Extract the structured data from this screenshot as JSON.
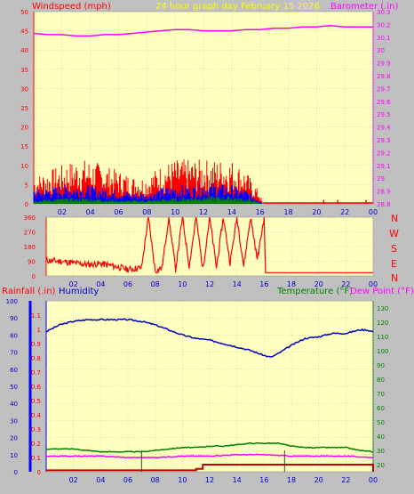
{
  "header": {
    "left_title": "Windspeed (mph)",
    "center_title": "24 hour graph day   February 15 2026",
    "right_title": "Barometer (.in)"
  },
  "wind_dir_labels": [
    "N",
    "W",
    "S",
    "E",
    "N"
  ],
  "bottom_header": {
    "rainfall": "Rainfall (.in)",
    "humidity": "Humidity",
    "temperature": "Temperature (°F)",
    "dew_point": "Dew Point (°F)"
  },
  "colors": {
    "background": "#c0c0c0",
    "plot": "#ffffc0",
    "wind_gust": "#ff0000",
    "wind_avg": "#0000ff",
    "wind_low": "#008000",
    "barometer": "#ff00ff",
    "direction": "#ff0000",
    "humidity": "#0000c0",
    "temperature": "#008000",
    "dew_point": "#ff00ff",
    "rainfall": "#c00000"
  },
  "chart_data": [
    {
      "type": "line",
      "x_ticks": [
        "02",
        "04",
        "06",
        "08",
        "10",
        "12",
        "14",
        "16",
        "18",
        "20",
        "22",
        "00"
      ],
      "xlim": [
        0,
        24
      ],
      "left_axis": {
        "ticks": [
          0,
          5,
          10,
          15,
          20,
          25,
          30,
          35,
          40,
          45,
          50
        ],
        "ylim": [
          0,
          50
        ]
      },
      "right_axis": {
        "ticks": [
          28.8,
          28.9,
          29.0,
          29.1,
          29.2,
          29.3,
          29.4,
          29.5,
          29.6,
          29.7,
          29.8,
          29.9,
          30.0,
          30.1,
          30.2,
          30.3
        ],
        "ylim": [
          28.8,
          30.3
        ]
      },
      "series": [
        {
          "key": "gust",
          "axis": "left",
          "x": [
            0,
            1,
            2,
            3,
            4,
            5,
            6,
            7,
            8,
            9,
            10,
            11,
            12,
            13,
            14,
            15,
            15.5,
            16,
            16.2,
            24
          ],
          "values": [
            5,
            6,
            7,
            8,
            8,
            7,
            6,
            5,
            5,
            7,
            8,
            8,
            8,
            8,
            8,
            6,
            4,
            2,
            0,
            0
          ]
        },
        {
          "key": "avg",
          "axis": "left",
          "x": [
            0,
            1,
            2,
            3,
            4,
            5,
            6,
            7,
            8,
            9,
            10,
            11,
            12,
            13,
            14,
            15,
            15.5,
            16,
            16.2
          ],
          "values": [
            3,
            3.5,
            4,
            4,
            4,
            3.5,
            3,
            2.5,
            2.5,
            3.5,
            4,
            4,
            4.5,
            4.5,
            4,
            3,
            2,
            1,
            0
          ]
        },
        {
          "key": "low",
          "axis": "left",
          "x": [
            0,
            2,
            4,
            6,
            8,
            10,
            12,
            14,
            15.5,
            16.2
          ],
          "values": [
            1,
            1.5,
            1.5,
            1,
            1,
            1.5,
            2,
            2,
            1,
            0
          ]
        },
        {
          "key": "baro",
          "axis": "right",
          "x": [
            0,
            1,
            2,
            3,
            4,
            5,
            6,
            7,
            8,
            9,
            10,
            11,
            12,
            13,
            14,
            15,
            16,
            17,
            18,
            19,
            20,
            21,
            22,
            23,
            24
          ],
          "values": [
            30.13,
            30.12,
            30.12,
            30.11,
            30.11,
            30.12,
            30.12,
            30.13,
            30.14,
            30.15,
            30.16,
            30.16,
            30.15,
            30.15,
            30.15,
            30.16,
            30.16,
            30.17,
            30.17,
            30.18,
            30.18,
            30.19,
            30.18,
            30.18,
            30.18
          ]
        }
      ]
    },
    {
      "type": "line",
      "x_ticks": [
        "02",
        "04",
        "06",
        "08",
        "10",
        "12",
        "14",
        "16",
        "18",
        "20",
        "22",
        "00"
      ],
      "xlim": [
        0,
        24
      ],
      "left_axis": {
        "ticks": [
          0,
          90,
          180,
          270,
          360
        ],
        "ylim": [
          0,
          360
        ]
      },
      "series": [
        {
          "key": "dir",
          "axis": "left",
          "x": [
            0,
            1,
            2,
            3,
            4,
            5,
            6,
            7,
            7.5,
            8,
            8.5,
            9,
            9.5,
            10,
            10.5,
            11,
            11.5,
            12,
            12.5,
            13,
            13.5,
            14,
            14.5,
            15,
            15.5,
            16,
            16.1,
            24
          ],
          "values": [
            95,
            90,
            80,
            70,
            75,
            60,
            40,
            50,
            360,
            30,
            50,
            360,
            40,
            360,
            60,
            360,
            40,
            360,
            50,
            360,
            80,
            360,
            60,
            360,
            100,
            360,
            20,
            20
          ]
        }
      ]
    },
    {
      "type": "line",
      "x_ticks": [
        "02",
        "04",
        "06",
        "08",
        "10",
        "12",
        "14",
        "16",
        "18",
        "20",
        "22",
        "00"
      ],
      "xlim": [
        0,
        24
      ],
      "humidity_axis": {
        "ticks": [
          0,
          10,
          20,
          30,
          40,
          50,
          60,
          70,
          80,
          90,
          100
        ],
        "ylim": [
          0,
          100
        ]
      },
      "rain_axis": {
        "ticks": [
          0,
          0.1,
          0.2,
          0.3,
          0.4,
          0.5,
          0.6,
          0.7,
          0.8,
          0.9,
          1,
          1.1
        ],
        "ylim": [
          0,
          1.2
        ]
      },
      "temp_axis": {
        "ticks": [
          20,
          30,
          40,
          50,
          60,
          70,
          80,
          90,
          100,
          110,
          120,
          130
        ],
        "ylim": [
          15,
          135
        ]
      },
      "series": [
        {
          "key": "humidity",
          "axis": "humidity",
          "x": [
            0,
            1,
            2,
            3,
            4,
            5,
            6,
            7,
            8,
            9,
            10,
            11,
            12,
            13,
            14,
            15,
            16,
            16.5,
            17,
            18,
            19,
            20,
            21,
            22,
            23,
            23.5,
            24
          ],
          "values": [
            82,
            86,
            88,
            89,
            89,
            89,
            89,
            88,
            86,
            83,
            80,
            78,
            77,
            75,
            73,
            71,
            68,
            67,
            69,
            74,
            78,
            79,
            81,
            81,
            83,
            83,
            82
          ]
        },
        {
          "key": "temp",
          "axis": "temp",
          "x": [
            0,
            1,
            2,
            3,
            4,
            5,
            6,
            7,
            8,
            9,
            10,
            11,
            12,
            13,
            14,
            15,
            16,
            17,
            18,
            19,
            20,
            21,
            22,
            23,
            24
          ],
          "values": [
            31,
            31,
            31,
            30,
            29,
            29,
            29,
            29,
            30,
            31,
            32,
            32,
            33,
            33,
            34,
            35,
            35,
            35,
            33,
            32,
            32,
            32,
            32,
            30,
            29
          ]
        },
        {
          "key": "dew",
          "axis": "temp",
          "x": [
            0,
            2,
            4,
            6,
            8,
            10,
            12,
            14,
            16,
            18,
            20,
            22,
            24
          ],
          "values": [
            26,
            26,
            26,
            25,
            25,
            26,
            26,
            27,
            27,
            26,
            26,
            26,
            25
          ]
        },
        {
          "key": "rain",
          "axis": "rain",
          "x": [
            0,
            8,
            10,
            11,
            11.5,
            12,
            14,
            16,
            18,
            20,
            22,
            23.8,
            24
          ],
          "values": [
            0.01,
            0.01,
            0.01,
            0.02,
            0.05,
            0.05,
            0.05,
            0.05,
            0.05,
            0.05,
            0.05,
            0.05,
            0.0
          ]
        }
      ]
    }
  ]
}
